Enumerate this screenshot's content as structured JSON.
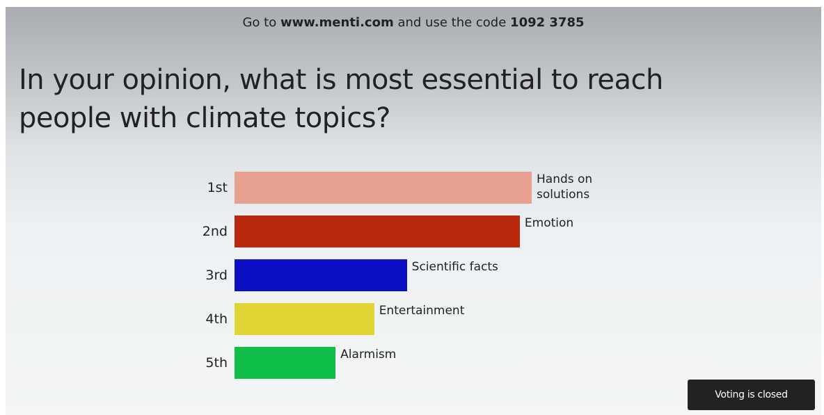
{
  "header": {
    "parts": [
      "Go to",
      "www.menti.com",
      "and use the code",
      "1092 3785"
    ]
  },
  "chart_data": {
    "type": "bar",
    "title": "In your opinion, what is most essential to reach people with climate topics?",
    "ranks": [
      "1st",
      "2nd",
      "3rd",
      "4th",
      "5th"
    ],
    "categories": [
      "Hands on solutions",
      "Emotion",
      "Scientific facts",
      "Entertainment",
      "Alarmism"
    ],
    "values": [
      100,
      96,
      58,
      47,
      34
    ],
    "colors": [
      "#e8a090",
      "#b8290e",
      "#0c0fc4",
      "#e0d535",
      "#0fbf48"
    ],
    "xlim": [
      0,
      100
    ]
  },
  "button": {
    "label": "Voting is closed"
  }
}
